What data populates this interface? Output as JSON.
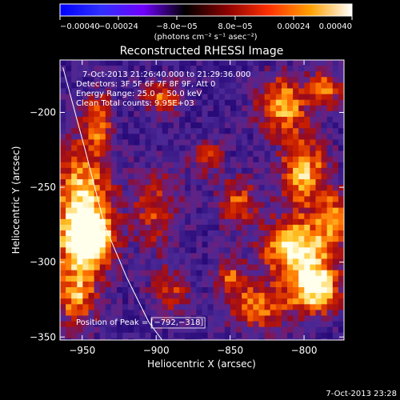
{
  "chart_data": {
    "type": "heatmap",
    "title": "Reconstructed RHESSI Image",
    "xlabel": "Heliocentric X (arcsec)",
    "ylabel": "Heliocentric Y (arcsec)",
    "xlim": [
      -965,
      -773
    ],
    "ylim": [
      -352,
      -165
    ],
    "x_ticks": [
      -950,
      -900,
      -850,
      -800
    ],
    "y_ticks": [
      -200,
      -250,
      -300,
      -350
    ],
    "x_tick_labels": [
      "−950",
      "−900",
      "−850",
      "−800"
    ],
    "y_tick_labels": [
      "−200",
      "−250",
      "−300",
      "−350"
    ],
    "colorbar": {
      "range": [
        -0.0004,
        0.0004
      ],
      "ticks": [
        -0.0004,
        -0.00024,
        -8e-05,
        8e-05,
        0.00024,
        0.0004
      ],
      "tick_labels": [
        "−0.00040",
        "−0.00024",
        "−8.0e−05",
        "8.0e−05",
        "0.00024",
        "0.00040"
      ],
      "unit_label": "(photons cm⁻² s⁻¹ asec⁻²)",
      "colors": [
        "#0000ff",
        "#3030ff",
        "#7000ff",
        "#000000",
        "#8a0000",
        "#ff3000",
        "#ffa000",
        "#ffffff"
      ]
    },
    "info_lines": [
      "7-Oct-2013 21:26:40.000 to 21:29:36.000",
      "Detectors: 3F 5F 6F 7F 8F 9F, Att 0",
      "Energy Range: 25.0 − 50.0 keV",
      "Clean    Total counts: 9.95E+03"
    ],
    "peak_label": "Position of Peak = [−792,−318]",
    "peak_position": [
      -792,
      -318
    ],
    "limb_curve": [
      [
        -963,
        -170
      ],
      [
        -948,
        -225
      ],
      [
        -935,
        -275
      ],
      [
        -920,
        -310
      ],
      [
        -905,
        -340
      ],
      [
        -896,
        -352
      ]
    ],
    "hot_spots": [
      {
        "x": -950,
        "y": -270,
        "sx": 14,
        "sy": 35,
        "a": 1.0
      },
      {
        "x": -945,
        "y": -285,
        "sx": 10,
        "sy": 10,
        "a": 0.9
      },
      {
        "x": -938,
        "y": -205,
        "sx": 6,
        "sy": 12,
        "a": 0.6
      },
      {
        "x": -955,
        "y": -325,
        "sx": 8,
        "sy": 12,
        "a": 0.5
      },
      {
        "x": -895,
        "y": -190,
        "sx": 10,
        "sy": 8,
        "a": 0.6
      },
      {
        "x": -900,
        "y": -265,
        "sx": 12,
        "sy": 20,
        "a": 0.5
      },
      {
        "x": -890,
        "y": -320,
        "sx": 10,
        "sy": 12,
        "a": 0.45
      },
      {
        "x": -865,
        "y": -230,
        "sx": 8,
        "sy": 8,
        "a": 0.5
      },
      {
        "x": -845,
        "y": -260,
        "sx": 10,
        "sy": 12,
        "a": 0.55
      },
      {
        "x": -850,
        "y": -310,
        "sx": 8,
        "sy": 10,
        "a": 0.5
      },
      {
        "x": -815,
        "y": -195,
        "sx": 12,
        "sy": 14,
        "a": 0.8
      },
      {
        "x": -800,
        "y": -240,
        "sx": 12,
        "sy": 16,
        "a": 0.8
      },
      {
        "x": -805,
        "y": -290,
        "sx": 16,
        "sy": 14,
        "a": 1.0
      },
      {
        "x": -792,
        "y": -318,
        "sx": 12,
        "sy": 12,
        "a": 1.0
      },
      {
        "x": -830,
        "y": -330,
        "sx": 14,
        "sy": 12,
        "a": 0.65
      },
      {
        "x": -780,
        "y": -270,
        "sx": 8,
        "sy": 12,
        "a": 0.6
      },
      {
        "x": -785,
        "y": -185,
        "sx": 8,
        "sy": 10,
        "a": 0.6
      }
    ]
  },
  "footer": {
    "timestamp": "7-Oct-2013 23:28"
  }
}
